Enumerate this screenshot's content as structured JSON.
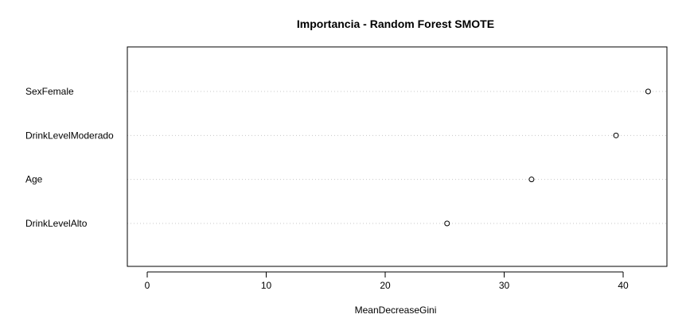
{
  "chart_data": {
    "type": "scatter",
    "title": "Importancia - Random Forest SMOTE",
    "xlabel": "MeanDecreaseGini",
    "ylabel": "",
    "xlim": [
      0,
      40
    ],
    "xticks": [
      0,
      10,
      20,
      30,
      40
    ],
    "grid": "horizontal dotted",
    "categories": [
      "SexFemale",
      "DrinkLevelModerado",
      "Age",
      "DrinkLevelAlto"
    ],
    "values": [
      42.1,
      39.4,
      32.3,
      25.2
    ]
  }
}
